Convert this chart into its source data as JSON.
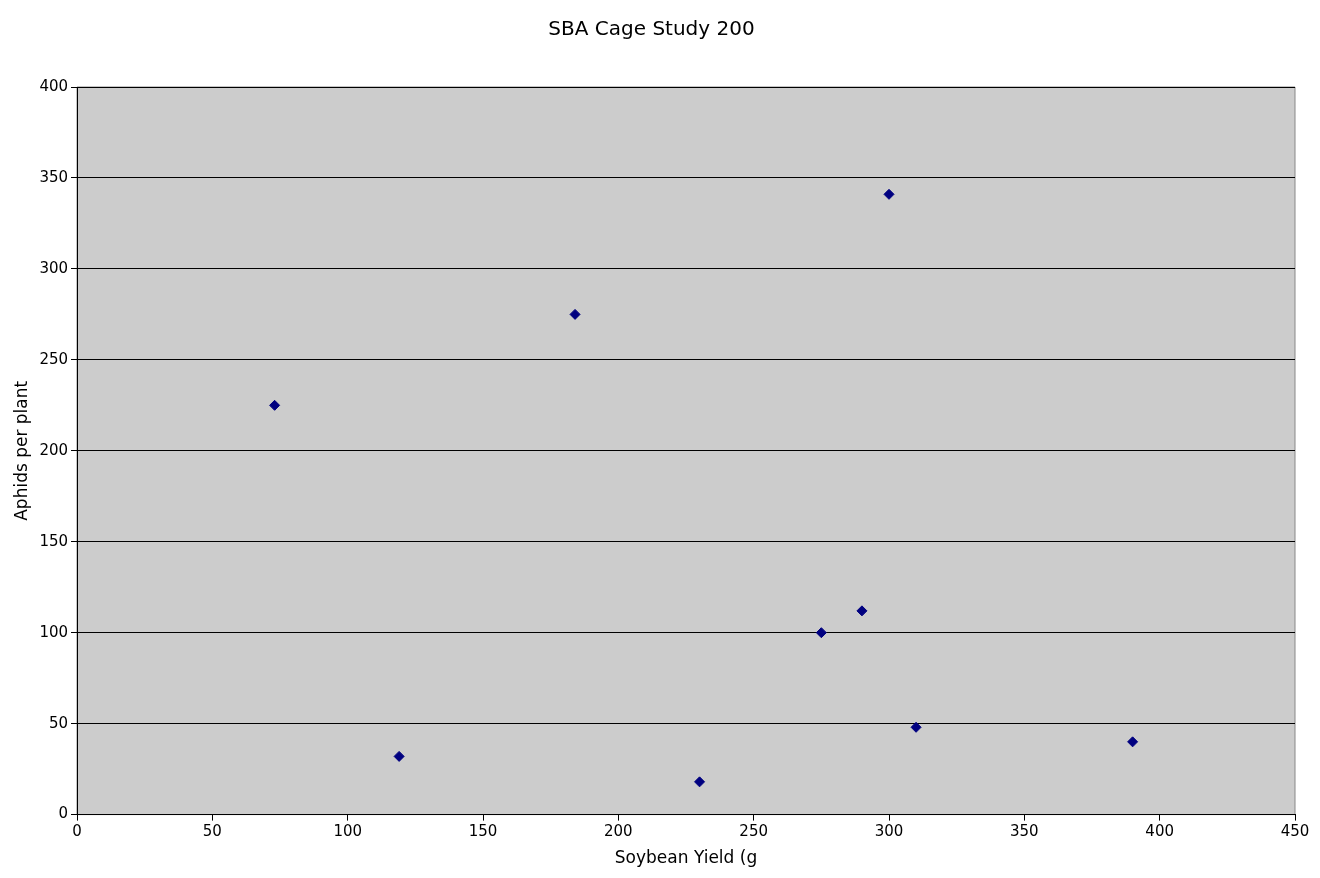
{
  "chart_data": {
    "type": "scatter",
    "title": "SBA Cage Study 200",
    "xlabel": "Soybean Yield (g",
    "ylabel": "Aphids per plant",
    "x": [
      73,
      119,
      184,
      230,
      275,
      290,
      300,
      310,
      390
    ],
    "series": [
      {
        "color": "#000080",
        "values": [
          225,
          32,
          275,
          18,
          100,
          112,
          341,
          48,
          40
        ]
      }
    ],
    "xlim": [
      0,
      450
    ],
    "xticks": [
      0,
      50,
      100,
      150,
      200,
      250,
      300,
      350,
      400,
      450
    ],
    "ylim": [
      0,
      400
    ],
    "yticks": [
      0,
      50,
      100,
      150,
      200,
      250,
      300,
      350,
      400
    ],
    "grid": "y",
    "legend": false,
    "marker": "diamond"
  }
}
